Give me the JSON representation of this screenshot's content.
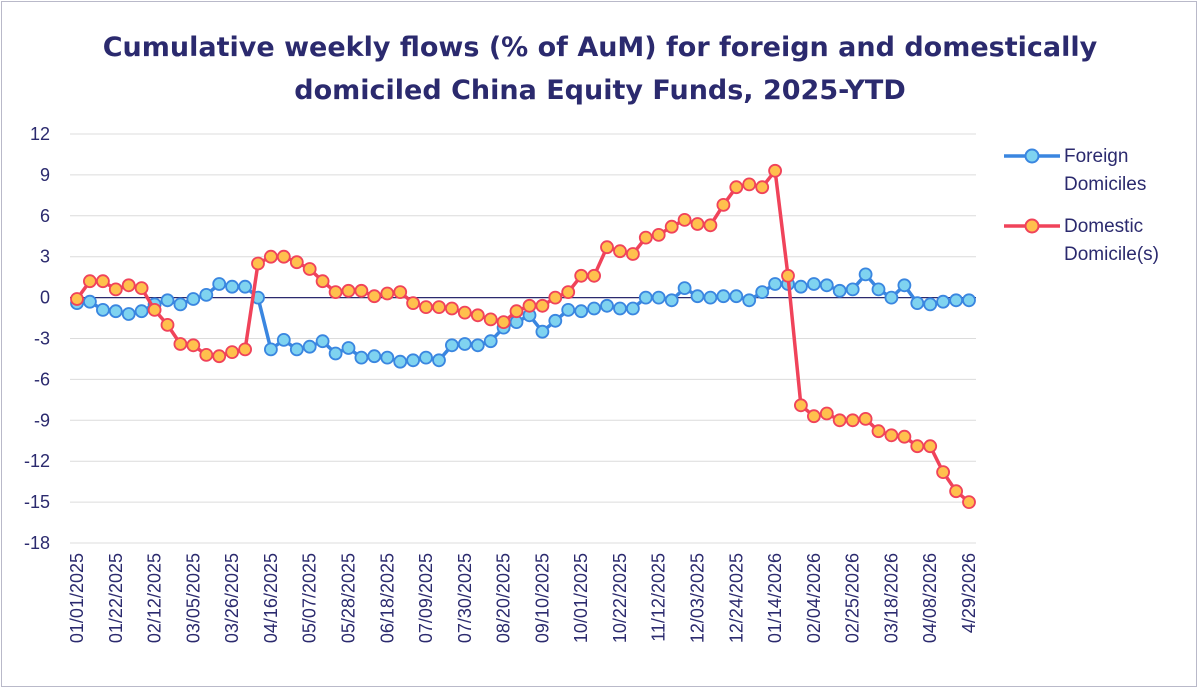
{
  "chart_data": {
    "type": "line",
    "title_lines": [
      "Cumulative weekly flows (% of AuM) for foreign and domestically",
      "domiciled China Equity Funds, 2025-YTD"
    ],
    "xlabel": "",
    "ylabel": "",
    "ylim": [
      -18,
      12
    ],
    "yticks": [
      12,
      9,
      6,
      3,
      0,
      -3,
      -6,
      -9,
      -12,
      -15,
      -18
    ],
    "xtick_labels": [
      "01/01/2025",
      "01/22/2025",
      "02/12/2025",
      "03/05/2025",
      "03/26/2025",
      "04/16/2025",
      "05/07/2025",
      "05/28/2025",
      "06/18/2025",
      "07/09/2025",
      "07/30/2025",
      "08/20/2025",
      "09/10/2025",
      "10/01/2025",
      "10/22/2025",
      "11/12/2025",
      "12/03/2025",
      "12/24/2025",
      "01/14/2026",
      "02/04/2026",
      "02/25/2026",
      "03/18/2026",
      "04/08/2026",
      "4/29/2026"
    ],
    "grid": true,
    "legend_position": "right",
    "series": [
      {
        "name": "Foreign Domiciles",
        "color": "#3a86e0",
        "marker_fill": "#7fd3f0",
        "values": [
          -0.4,
          -0.3,
          -0.9,
          -1.0,
          -1.2,
          -1.0,
          -0.5,
          -0.2,
          -0.5,
          -0.1,
          0.2,
          1.0,
          0.8,
          0.8,
          0.0,
          -3.8,
          -3.1,
          -3.8,
          -3.6,
          -3.2,
          -4.1,
          -3.7,
          -4.4,
          -4.3,
          -4.4,
          -4.7,
          -4.6,
          -4.4,
          -4.6,
          -3.5,
          -3.4,
          -3.5,
          -3.2,
          -2.2,
          -1.8,
          -1.3,
          -2.5,
          -1.7,
          -0.9,
          -1.0,
          -0.8,
          -0.6,
          -0.8,
          -0.8,
          0.0,
          0.0,
          -0.2,
          0.7,
          0.1,
          0.0,
          0.1,
          0.1,
          -0.2,
          0.4,
          1.0,
          1.0,
          0.8,
          1.0,
          0.9,
          0.5,
          0.6,
          1.7,
          0.6,
          0.0,
          0.9,
          -0.4,
          -0.5,
          -0.3,
          -0.2,
          -0.2
        ]
      },
      {
        "name": "Domestic Domicile(s)",
        "color": "#f0435a",
        "marker_fill": "#ffc04d",
        "values": [
          -0.1,
          1.2,
          1.2,
          0.6,
          0.9,
          0.7,
          -0.9,
          -2.0,
          -3.4,
          -3.5,
          -4.2,
          -4.3,
          -4.0,
          -3.8,
          2.5,
          3.0,
          3.0,
          2.6,
          2.1,
          1.2,
          0.4,
          0.5,
          0.5,
          0.1,
          0.3,
          0.4,
          -0.4,
          -0.7,
          -0.7,
          -0.8,
          -1.1,
          -1.3,
          -1.6,
          -1.8,
          -1.0,
          -0.6,
          -0.6,
          0.0,
          0.4,
          1.6,
          1.6,
          3.7,
          3.4,
          3.2,
          4.4,
          4.6,
          5.2,
          5.7,
          5.4,
          5.3,
          6.8,
          8.1,
          8.3,
          8.1,
          9.3,
          1.6,
          -7.9,
          -8.7,
          -8.5,
          -9.0,
          -9.0,
          -8.9,
          -9.8,
          -10.1,
          -10.2,
          -10.9,
          -10.9,
          -12.8,
          -14.2,
          -15.0
        ]
      }
    ]
  }
}
